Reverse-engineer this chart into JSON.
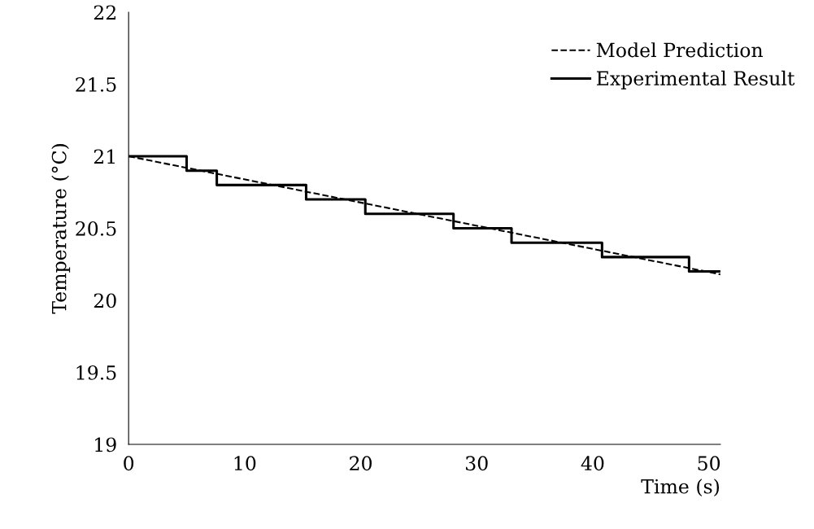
{
  "chart_data": {
    "type": "line",
    "xlabel": "Time (s)",
    "ylabel": "Temperature (°C)",
    "xlim": [
      0,
      51
    ],
    "ylim": [
      19,
      22
    ],
    "xticks": [
      0,
      10,
      20,
      30,
      40,
      50
    ],
    "yticks": [
      19,
      19.5,
      20,
      20.5,
      21,
      21.5,
      22
    ],
    "series": [
      {
        "name": "Model Prediction",
        "color": "#000000",
        "line_style": "dashed",
        "x": [
          0,
          51
        ],
        "values": [
          21.0,
          20.18
        ]
      },
      {
        "name": "Experimental Result",
        "type": "step",
        "color": "#000000",
        "line_style": "solid",
        "x": [
          0,
          5,
          7.6,
          15.3,
          20.4,
          28,
          33,
          40.8,
          48.3,
          51
        ],
        "values": [
          21.0,
          20.9,
          20.8,
          20.7,
          20.6,
          20.5,
          20.4,
          20.3,
          20.2,
          20.2
        ]
      }
    ],
    "grid": false,
    "legend": "top right",
    "marker": "none"
  }
}
